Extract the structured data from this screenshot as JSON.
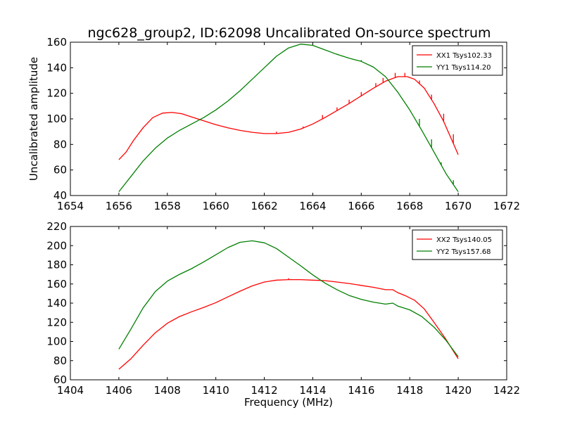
{
  "figure": {
    "title": "ngc628_group2, ID:62098 Uncalibrated On-source spectrum",
    "xlabel": "Frequency (MHz)",
    "ylabel_top": "Uncalibrated amplitude"
  },
  "chart_data": [
    {
      "type": "line",
      "title": "ngc628_group2, ID:62098 Uncalibrated On-source spectrum",
      "xlabel": "",
      "ylabel": "Uncalibrated amplitude",
      "xlim": [
        1654,
        1672
      ],
      "ylim": [
        40,
        160
      ],
      "xticks": [
        1654,
        1656,
        1658,
        1660,
        1662,
        1664,
        1666,
        1668,
        1670,
        1672
      ],
      "yticks": [
        40,
        60,
        80,
        100,
        120,
        140,
        160
      ],
      "legend": "top-right",
      "grid": false,
      "series": [
        {
          "name": "XX1 Tsys102.33",
          "color": "#ff0000",
          "x": [
            1656.0,
            1656.3,
            1656.6,
            1657.0,
            1657.4,
            1657.8,
            1658.2,
            1658.6,
            1659.0,
            1659.5,
            1660.0,
            1660.5,
            1661.0,
            1661.5,
            1662.0,
            1662.5,
            1663.0,
            1663.5,
            1664.0,
            1664.5,
            1665.0,
            1665.5,
            1666.0,
            1666.5,
            1667.0,
            1667.5,
            1667.9,
            1668.2,
            1668.6,
            1669.0,
            1669.4,
            1669.7,
            1670.0
          ],
          "y": [
            68,
            74,
            83,
            93,
            101,
            104.5,
            105,
            104,
            101.5,
            98.5,
            95.5,
            93,
            91,
            89.5,
            88.5,
            88.5,
            89.5,
            92,
            96,
            101,
            106.5,
            112,
            118,
            124,
            129.5,
            133,
            133,
            131,
            124,
            112,
            98,
            85,
            72
          ],
          "spikes": [
            {
              "x": 1662.5,
              "y": 90
            },
            {
              "x": 1663.6,
              "y": 94
            },
            {
              "x": 1664.4,
              "y": 103
            },
            {
              "x": 1665.0,
              "y": 109
            },
            {
              "x": 1665.5,
              "y": 115
            },
            {
              "x": 1666.0,
              "y": 121
            },
            {
              "x": 1666.6,
              "y": 128
            },
            {
              "x": 1666.9,
              "y": 132
            },
            {
              "x": 1667.4,
              "y": 136
            },
            {
              "x": 1667.8,
              "y": 136
            },
            {
              "x": 1668.4,
              "y": 130
            },
            {
              "x": 1668.9,
              "y": 119
            },
            {
              "x": 1669.4,
              "y": 104
            },
            {
              "x": 1669.8,
              "y": 88
            }
          ]
        },
        {
          "name": "YY1 Tsys114.20",
          "color": "#008000",
          "x": [
            1656.0,
            1656.5,
            1657.0,
            1657.5,
            1658.0,
            1658.5,
            1659.0,
            1659.5,
            1660.0,
            1660.5,
            1661.0,
            1661.5,
            1662.0,
            1662.5,
            1663.0,
            1663.5,
            1664.0,
            1664.5,
            1665.0,
            1665.5,
            1666.0,
            1666.5,
            1667.0,
            1667.5,
            1668.0,
            1668.5,
            1669.0,
            1669.5,
            1670.0
          ],
          "y": [
            43,
            55,
            67,
            77,
            85,
            91,
            96,
            101,
            107,
            114,
            122,
            131,
            140,
            149,
            155.5,
            158.5,
            157.5,
            154,
            150.5,
            147.5,
            145,
            140.5,
            133,
            121,
            107,
            91,
            74,
            57,
            43
          ],
          "spikes": [
            {
              "x": 1665.0,
              "y": 151
            },
            {
              "x": 1666.0,
              "y": 146
            },
            {
              "x": 1668.0,
              "y": 107
            },
            {
              "x": 1668.4,
              "y": 100
            },
            {
              "x": 1668.9,
              "y": 84
            },
            {
              "x": 1669.3,
              "y": 66
            },
            {
              "x": 1669.8,
              "y": 52
            }
          ]
        }
      ]
    },
    {
      "type": "line",
      "title": "",
      "xlabel": "Frequency (MHz)",
      "ylabel": "",
      "xlim": [
        1404,
        1422
      ],
      "ylim": [
        60,
        220
      ],
      "xticks": [
        1404,
        1406,
        1408,
        1410,
        1412,
        1414,
        1416,
        1418,
        1420,
        1422
      ],
      "yticks": [
        60,
        80,
        100,
        120,
        140,
        160,
        180,
        200,
        220
      ],
      "legend": "top-right",
      "grid": false,
      "series": [
        {
          "name": "XX2 Tsys140.05",
          "color": "#ff0000",
          "x": [
            1406.0,
            1406.5,
            1407.0,
            1407.5,
            1408.0,
            1408.5,
            1409.0,
            1409.5,
            1410.0,
            1410.5,
            1411.0,
            1411.5,
            1412.0,
            1412.5,
            1413.0,
            1413.5,
            1414.0,
            1414.5,
            1415.0,
            1415.5,
            1416.0,
            1416.5,
            1417.0,
            1417.3,
            1417.5,
            1417.8,
            1418.2,
            1418.6,
            1419.0,
            1419.5,
            1420.0
          ],
          "y": [
            71,
            82,
            96,
            109,
            119,
            126,
            131,
            135.5,
            140.5,
            146.5,
            152.5,
            158,
            162,
            164,
            164.5,
            164.5,
            164,
            163.5,
            162,
            160.5,
            158.5,
            156.5,
            154,
            154,
            151,
            148,
            143,
            134,
            120,
            102,
            82
          ],
          "spikes": [
            {
              "x": 1413.0,
              "y": 166
            }
          ]
        },
        {
          "name": "YY2 Tsys157.68",
          "color": "#008000",
          "x": [
            1406.0,
            1406.5,
            1407.0,
            1407.5,
            1408.0,
            1408.5,
            1409.0,
            1409.5,
            1410.0,
            1410.5,
            1411.0,
            1411.5,
            1412.0,
            1412.5,
            1413.0,
            1413.5,
            1414.0,
            1414.5,
            1415.0,
            1415.5,
            1416.0,
            1416.5,
            1417.0,
            1417.3,
            1417.5,
            1418.0,
            1418.5,
            1419.0,
            1419.5,
            1420.0
          ],
          "y": [
            92,
            113,
            135,
            152,
            163,
            170,
            176,
            183,
            190.5,
            198,
            203.5,
            205,
            203,
            197,
            188,
            179,
            169.5,
            161,
            154,
            148,
            144,
            141,
            139,
            140,
            137,
            133,
            126,
            115,
            101,
            84
          ],
          "spikes": []
        }
      ]
    }
  ]
}
